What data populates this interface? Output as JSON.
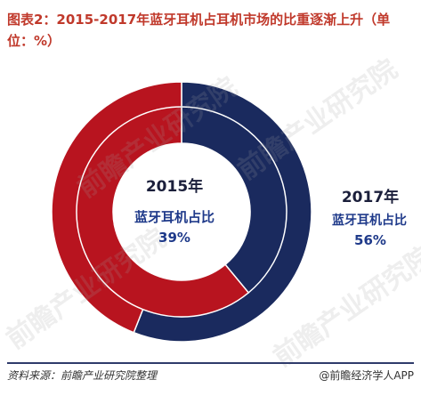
{
  "title": "图表2：2015-2017年蓝牙耳机占耳机市场的比重逐渐上升（单位：%）",
  "chart_data": {
    "type": "donut",
    "title": "图表2：2015-2017年蓝牙耳机占耳机市场的比重逐渐上升（单位：%）",
    "unit": "%",
    "rings": [
      {
        "year": "2015年",
        "label": "蓝牙耳机占比",
        "value_text": "39%",
        "value": 39,
        "ring": "inner"
      },
      {
        "year": "2017年",
        "label": "蓝牙耳机占比",
        "value_text": "56%",
        "value": 56,
        "ring": "outer"
      }
    ],
    "colors": {
      "bluetooth": "#1a2a5e",
      "other": "#b8141f"
    }
  },
  "footer": {
    "source": "资料来源：前瞻产业研究院整理",
    "brand": "@前瞻经济学人APP"
  },
  "watermark": "前瞻产业研究院"
}
